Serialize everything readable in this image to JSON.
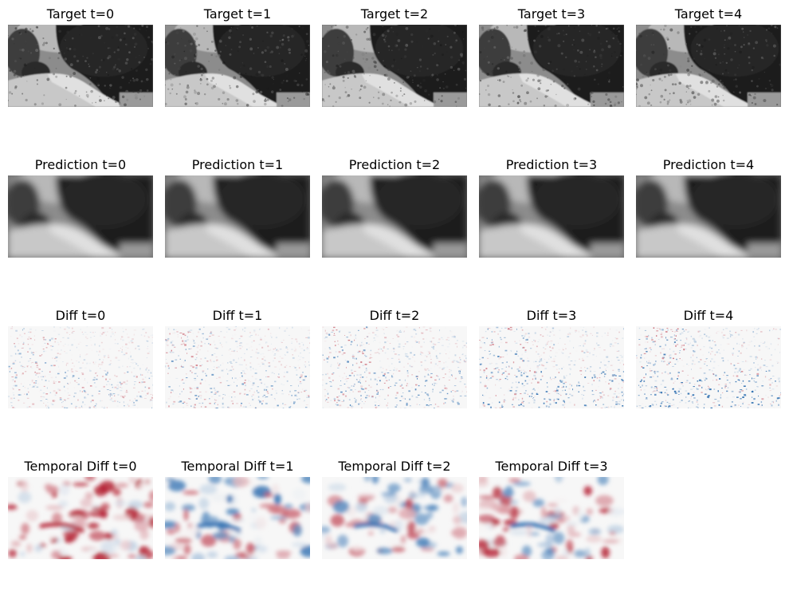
{
  "rows": [
    {
      "kind": "target",
      "panels": [
        {
          "title": "Target t=0",
          "image": "grayscale-photo-tree-lined-dirt-path"
        },
        {
          "title": "Target t=1",
          "image": "grayscale-photo-tree-lined-dirt-path"
        },
        {
          "title": "Target t=2",
          "image": "grayscale-photo-tree-lined-dirt-path"
        },
        {
          "title": "Target t=3",
          "image": "grayscale-photo-tree-lined-dirt-path"
        },
        {
          "title": "Target t=4",
          "image": "grayscale-photo-tree-lined-dirt-path"
        }
      ]
    },
    {
      "kind": "prediction",
      "panels": [
        {
          "title": "Prediction t=0",
          "image": "blurred-grayscale-prediction"
        },
        {
          "title": "Prediction t=1",
          "image": "blurred-grayscale-prediction"
        },
        {
          "title": "Prediction t=2",
          "image": "blurred-grayscale-prediction"
        },
        {
          "title": "Prediction t=3",
          "image": "blurred-grayscale-prediction"
        },
        {
          "title": "Prediction t=4",
          "image": "blurred-grayscale-prediction"
        }
      ]
    },
    {
      "kind": "diff",
      "panels": [
        {
          "title": "Diff t=0",
          "image": "red-blue-diverging-difference-map"
        },
        {
          "title": "Diff t=1",
          "image": "red-blue-diverging-difference-map"
        },
        {
          "title": "Diff t=2",
          "image": "red-blue-diverging-difference-map"
        },
        {
          "title": "Diff t=3",
          "image": "red-blue-diverging-difference-map"
        },
        {
          "title": "Diff t=4",
          "image": "red-blue-diverging-difference-map"
        }
      ]
    },
    {
      "kind": "temporal",
      "panels": [
        {
          "title": "Temporal Diff t=0",
          "image": "red-blue-diverging-temporal-map"
        },
        {
          "title": "Temporal Diff t=1",
          "image": "red-blue-diverging-temporal-map"
        },
        {
          "title": "Temporal Diff t=2",
          "image": "red-blue-diverging-temporal-map"
        },
        {
          "title": "Temporal Diff t=3",
          "image": "red-blue-diverging-temporal-map"
        }
      ]
    }
  ],
  "colors": {
    "background": "#ffffff",
    "title_text": "#000000",
    "diverging_red": "#b2182b",
    "diverging_blue": "#2166ac",
    "diverging_mid": "#f7f7f7"
  }
}
